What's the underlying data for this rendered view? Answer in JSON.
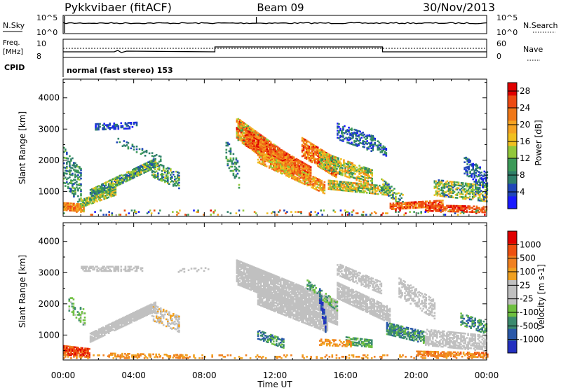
{
  "header": {
    "station": "Pykkvibaer (fitACF)",
    "beam": "Beam 09",
    "date": "30/Nov/2013"
  },
  "top_panels": {
    "nsky_label": "N.Sky",
    "nsky_ticks": [
      "10^5",
      "10^0"
    ],
    "nsearch_label": "N.Search",
    "nsearch_ticks": [
      "10^5",
      "10^0"
    ],
    "freq_label": "Freq.",
    "freq_unit": "[MHz]",
    "freq_ticks": [
      "10",
      "8"
    ],
    "nave_label": "Nave",
    "nave_ticks": [
      "60",
      "0"
    ],
    "cpid_label": "CPID",
    "cpid_text": "normal (fast stereo) 153"
  },
  "colors": {
    "power_scale": [
      "#1a1aff",
      "#2046b8",
      "#2f7f6a",
      "#3c9a58",
      "#92c83a",
      "#f0c020",
      "#f5a323",
      "#f07818",
      "#ee4a12",
      "#e00000"
    ],
    "velocity_scale": [
      "#2330c0",
      "#2a58a8",
      "#3b8a6e",
      "#6fc040",
      "#c0c0c0",
      "#c0c0c0",
      "#f0a020",
      "#f08020",
      "#ee5010",
      "#e00000"
    ]
  },
  "chart_data": [
    {
      "type": "heatmap",
      "name": "power",
      "xlabel": "",
      "ylabel": "Slant Range [km]",
      "x_ticks": [
        "00:00",
        "04:00",
        "08:00",
        "12:00",
        "16:00",
        "20:00",
        "00:00"
      ],
      "y_ticks": [
        "1000",
        "2000",
        "3000",
        "4000"
      ],
      "ylim": [
        200,
        4600
      ],
      "colorbar_label": "Power [dB]",
      "colorbar_ticks": [
        "4",
        "8",
        "12",
        "16",
        "20",
        "24",
        "28"
      ],
      "colorbar_range": [
        0,
        30
      ]
    },
    {
      "type": "heatmap",
      "name": "velocity",
      "xlabel": "Time UT",
      "ylabel": "Slant Range [km]",
      "x_ticks": [
        "00:00",
        "04:00",
        "08:00",
        "12:00",
        "16:00",
        "20:00",
        "00:00"
      ],
      "y_ticks": [
        "1000",
        "2000",
        "3000",
        "4000"
      ],
      "ylim": [
        200,
        4600
      ],
      "colorbar_label": "Velocity [m s-1]",
      "colorbar_ticks": [
        "1000",
        "500",
        "100",
        "25",
        "-25",
        "-100",
        "-500",
        "-1000"
      ]
    }
  ]
}
